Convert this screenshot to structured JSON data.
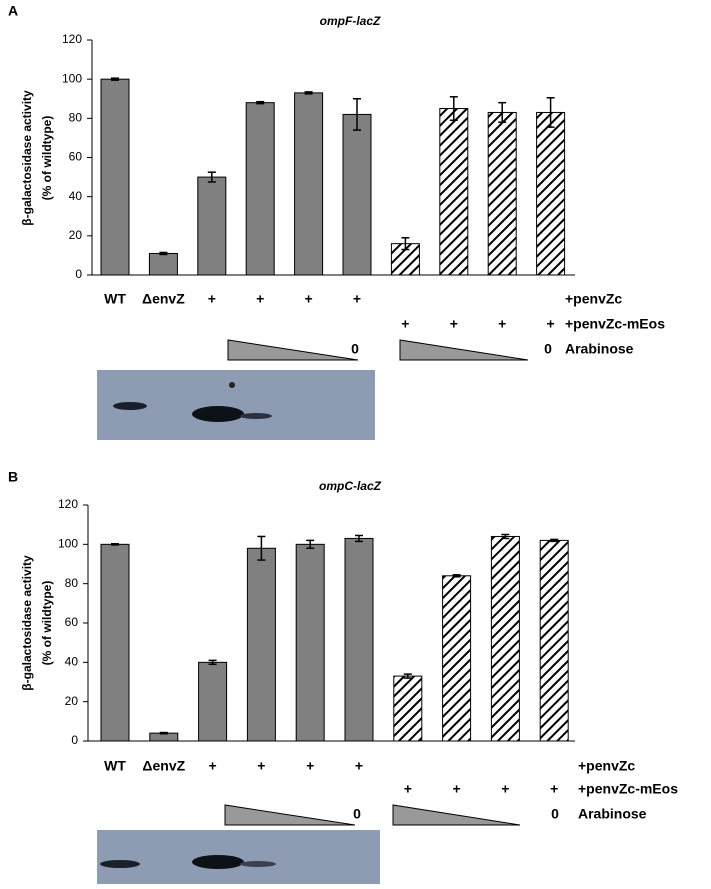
{
  "chart_data": [
    {
      "type": "bar",
      "panel": "A",
      "title": "ompF-lacZ",
      "ylabel": [
        "β-galactosidase activity",
        "(% of wildtype)"
      ],
      "categories": [
        "WT",
        "ΔenvZ",
        "+",
        "+",
        "+",
        "+",
        null,
        null,
        null,
        null
      ],
      "values": [
        100,
        11,
        50,
        88,
        93,
        82,
        16,
        85,
        83,
        83
      ],
      "errors": [
        0.5,
        0.5,
        2.5,
        0.5,
        0.5,
        8,
        3,
        6,
        5,
        7.5
      ],
      "pattern": [
        "solid",
        "solid",
        "solid",
        "solid",
        "solid",
        "solid",
        "hatched",
        "hatched",
        "hatched",
        "hatched"
      ],
      "color": "#808080",
      "mEos_marks": [
        "+",
        "+",
        "+",
        "+"
      ],
      "row_labels": [
        "+penvZc",
        "+penvZc-mEos",
        "Arabinose"
      ],
      "arabinose_zero": [
        "0",
        "0"
      ],
      "ylim": [
        0,
        120
      ],
      "yticks": [
        0,
        20,
        40,
        60,
        80,
        100,
        120
      ]
    },
    {
      "type": "bar",
      "panel": "B",
      "title": "ompC-lacZ",
      "ylabel": [
        "β-galactosidase activity",
        "(% of wildtype)"
      ],
      "categories": [
        "WT",
        "ΔenvZ",
        "+",
        "+",
        "+",
        "+",
        null,
        null,
        null,
        null
      ],
      "values": [
        100,
        4,
        40,
        98,
        100,
        103,
        33,
        84,
        104,
        102
      ],
      "errors": [
        0.3,
        0.3,
        1,
        6,
        2,
        1.5,
        1,
        0.5,
        1,
        0.5
      ],
      "pattern": [
        "solid",
        "solid",
        "solid",
        "solid",
        "solid",
        "solid",
        "hatched",
        "hatched",
        "hatched",
        "hatched"
      ],
      "color": "#808080",
      "mEos_marks": [
        "+",
        "+",
        "+",
        "+"
      ],
      "row_labels": [
        "+penvZc",
        "+penvZc-mEos",
        "Arabinose"
      ],
      "arabinose_zero": [
        "0",
        "0"
      ],
      "ylim": [
        0,
        120
      ],
      "yticks": [
        0,
        20,
        40,
        60,
        80,
        100,
        120
      ]
    }
  ]
}
